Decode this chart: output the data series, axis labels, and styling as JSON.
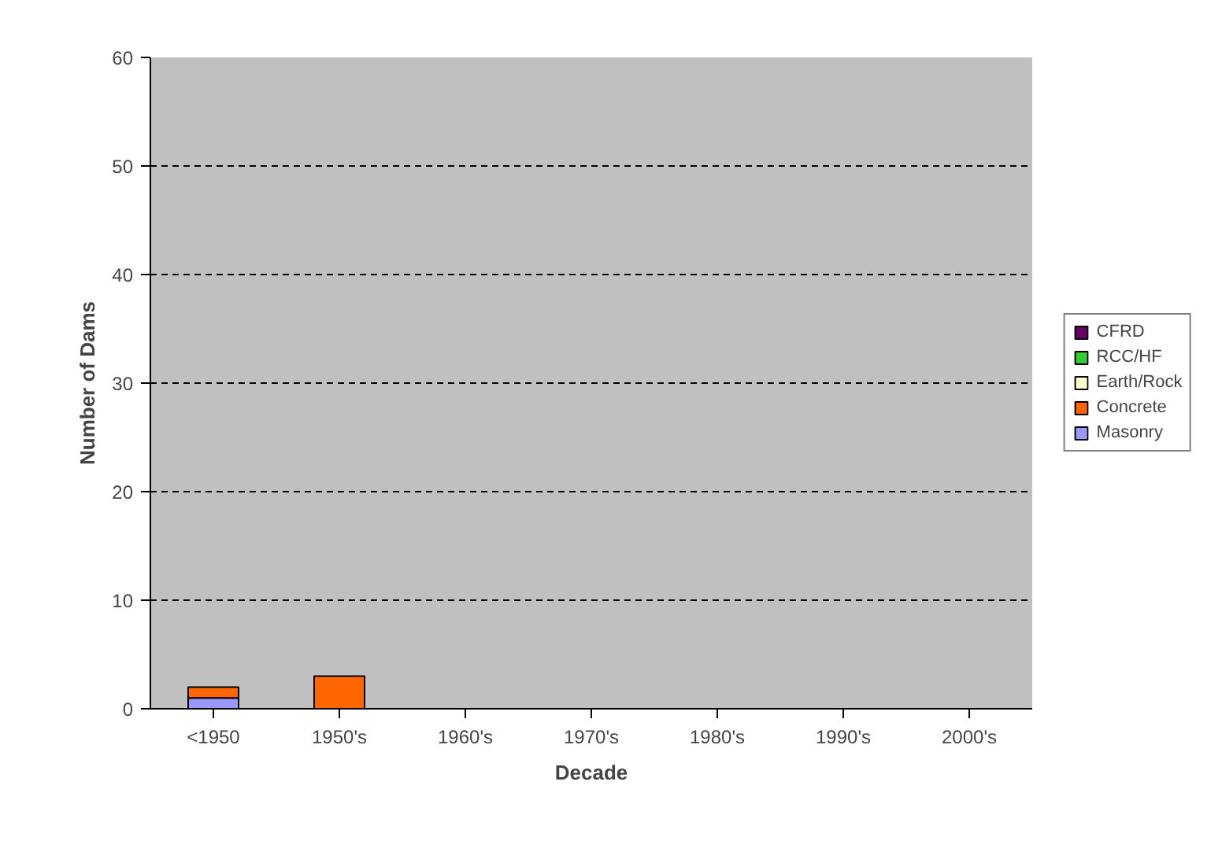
{
  "chart_data": {
    "type": "bar",
    "stacked": true,
    "xlabel": "Decade",
    "ylabel": "Number of Dams",
    "categories": [
      "<1950",
      "1950's",
      "1960's",
      "1970's",
      "1980's",
      "1990's",
      "2000's"
    ],
    "series": [
      {
        "name": "Masonry",
        "color": "#9999ff",
        "values": [
          1,
          0,
          0,
          0,
          0,
          0,
          0
        ]
      },
      {
        "name": "Concrete",
        "color": "#ff6600",
        "values": [
          1,
          3,
          0,
          0,
          0,
          0,
          0
        ]
      },
      {
        "name": "Earth/Rock",
        "color": "#ffffcc",
        "values": [
          0,
          0,
          0,
          0,
          0,
          0,
          0
        ]
      },
      {
        "name": "RCC/HF",
        "color": "#33cc33",
        "values": [
          0,
          0,
          0,
          0,
          0,
          0,
          0
        ]
      },
      {
        "name": "CFRD",
        "color": "#660066",
        "values": [
          0,
          0,
          0,
          0,
          0,
          0,
          0
        ]
      }
    ],
    "ylim": [
      0,
      60
    ],
    "yticks": [
      0,
      10,
      20,
      30,
      40,
      50,
      60
    ],
    "grid": "y",
    "legend": "right"
  }
}
